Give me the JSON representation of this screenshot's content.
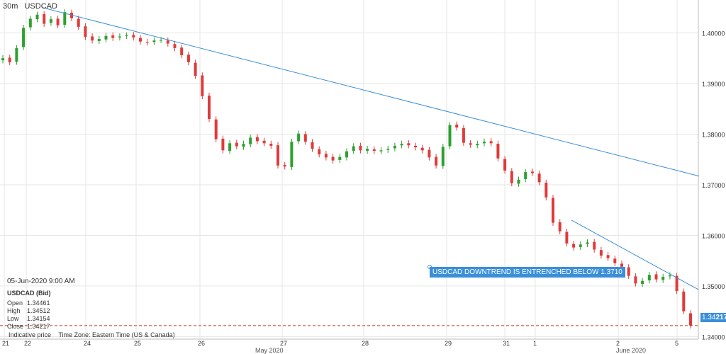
{
  "header": {
    "interval": "30m",
    "symbol": "USDCAD"
  },
  "info": {
    "datetime": "05-Jun-2020 9:00 AM",
    "symbol": "USDCAD (Bid)",
    "rows": [
      {
        "k": "Open",
        "v": "1.34461"
      },
      {
        "k": "High",
        "v": "1.34512"
      },
      {
        "k": "Low",
        "v": "1.34154"
      },
      {
        "k": "Close",
        "v": "1.34217"
      }
    ]
  },
  "footer": {
    "price_note": "Indicative price",
    "timezone": "Time Zone: Eastern Time (US & Canada)"
  },
  "annotation": "USDCAD DOWNTREND IS ENTRENCHED BELOW 1.3710",
  "current_price": {
    "prefix": "1.34",
    "suffix": "217"
  },
  "colors": {
    "up": "#2ea02e",
    "down": "#e03a3a",
    "trend": "#3a8fd9",
    "grid": "#e6e6e6",
    "current": "#c0392b"
  },
  "chart_data": {
    "type": "candlestick",
    "ylim": [
      1.3395,
      1.4065
    ],
    "y_ticks": [
      "1.34000",
      "1.35000",
      "1.36000",
      "1.37000",
      "1.38000",
      "1.39000",
      "1.40000"
    ],
    "x_ticks": [
      "21",
      "22",
      "24",
      "25",
      "26",
      "27",
      "28",
      "29",
      "31",
      "1",
      "2",
      "5"
    ],
    "month_labels": [
      "May 2020",
      "June 2020"
    ],
    "current_price": 1.34217,
    "series": [
      {
        "close": [
          1.395,
          1.3942,
          1.397,
          1.401,
          1.4028,
          1.4036,
          1.4018,
          1.4027,
          1.4015,
          1.4041,
          1.4029,
          1.4012,
          1.3992,
          1.3985,
          1.3988,
          1.3994,
          1.399,
          1.3993,
          1.3995,
          1.3991,
          1.3983,
          1.3981,
          1.3985,
          1.3986,
          1.3979,
          1.397,
          1.3956,
          1.3942,
          1.3915,
          1.3875,
          1.383,
          1.379,
          1.3768,
          1.3782,
          1.3776,
          1.3781,
          1.3793,
          1.3786,
          1.3782,
          1.3777,
          1.3738,
          1.3736,
          1.3785,
          1.3801,
          1.3785,
          1.3771,
          1.376,
          1.3754,
          1.3748,
          1.3755,
          1.3766,
          1.3776,
          1.3768,
          1.3771,
          1.3767,
          1.3768,
          1.3771,
          1.3777,
          1.3781,
          1.3778,
          1.3774,
          1.3768,
          1.3754,
          1.3738,
          1.3775,
          1.3818,
          1.3813,
          1.3783,
          1.3779,
          1.3781,
          1.3785,
          1.3782,
          1.3752,
          1.3728,
          1.3703,
          1.371,
          1.3725,
          1.3723,
          1.3705,
          1.3675,
          1.3625,
          1.3608,
          1.3584,
          1.3576,
          1.3582,
          1.3586,
          1.3572,
          1.356,
          1.3555,
          1.3545,
          1.3538,
          1.352,
          1.3505,
          1.351,
          1.3522,
          1.3513,
          1.3518,
          1.3521,
          1.349,
          1.345,
          1.3422
        ]
      },
      {
        "open": [
          1.3946,
          1.3951,
          1.3943,
          1.3972,
          1.4011,
          1.4027,
          1.4037,
          1.402,
          1.4028,
          1.4016,
          1.404,
          1.4028,
          1.4013,
          1.3993,
          1.3984,
          1.3987,
          1.3995,
          1.3991,
          1.3994,
          1.3996,
          1.399,
          1.3982,
          1.3982,
          1.3986,
          1.3985,
          1.3978,
          1.3971,
          1.3957,
          1.3941,
          1.3916,
          1.3876,
          1.3829,
          1.3791,
          1.3767,
          1.3783,
          1.3775,
          1.378,
          1.3794,
          1.3787,
          1.3781,
          1.3778,
          1.3739,
          1.3735,
          1.3786,
          1.38,
          1.3784,
          1.377,
          1.3761,
          1.3755,
          1.3749,
          1.3754,
          1.3767,
          1.3777,
          1.3767,
          1.377,
          1.3766,
          1.3769,
          1.3772,
          1.3778,
          1.3782,
          1.3777,
          1.3773,
          1.3769,
          1.3755,
          1.3737,
          1.3776,
          1.3819,
          1.3812,
          1.3782,
          1.3778,
          1.3782,
          1.3786,
          1.3781,
          1.3751,
          1.3727,
          1.3702,
          1.3711,
          1.3726,
          1.3722,
          1.3704,
          1.3674,
          1.3626,
          1.3607,
          1.3583,
          1.3577,
          1.3583,
          1.3587,
          1.3571,
          1.3561,
          1.3554,
          1.3544,
          1.3537,
          1.3519,
          1.3504,
          1.3511,
          1.3523,
          1.3512,
          1.3519,
          1.352,
          1.3489,
          1.3446
        ]
      }
    ]
  }
}
